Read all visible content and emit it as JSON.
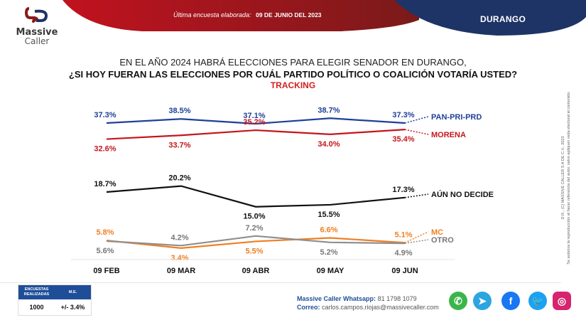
{
  "header": {
    "brand_name": "Massive",
    "brand_sub": "Caller",
    "last_survey_label": "Última encuesta elaborada:",
    "last_survey_date": "09 DE JUNIO DEL 2023",
    "region": "DURANGO",
    "colors": {
      "red": "#b3151b",
      "navy": "#1e3466"
    }
  },
  "titles": {
    "line1": "EN EL AÑO 2024 HABRÁ ELECCIONES PARA ELEGIR SENADOR EN DURANGO,",
    "line2": "¿SI HOY FUERAN LAS ELECCIONES POR CUÁL PARTIDO POLÍTICO O COALICIÓN  VOTARÍA USTED?",
    "line3": "TRACKING"
  },
  "chart_data": {
    "type": "line",
    "title": "TRACKING",
    "categories": [
      "09 FEB",
      "09 MAR",
      "09 ABR",
      "09 MAY",
      "09 JUN"
    ],
    "xlabel": "",
    "ylabel": "",
    "grid": false,
    "legend": "right (end-of-line labels)",
    "series": [
      {
        "name": "PAN-PRI-PRD",
        "color": "#1f3f99",
        "values": [
          37.3,
          38.5,
          37.1,
          38.7,
          37.3
        ],
        "labels": [
          "37.3%",
          "38.5%",
          "37.1%",
          "38.7%",
          "37.3%"
        ]
      },
      {
        "name": "MORENA",
        "color": "#c4161c",
        "values": [
          32.6,
          33.7,
          35.2,
          34.0,
          35.4
        ],
        "labels": [
          "32.6%",
          "33.7%",
          "35.2%",
          "34.0%",
          "35.4%"
        ]
      },
      {
        "name": "AÚN NO DECIDE",
        "color": "#111111",
        "values": [
          18.7,
          20.2,
          15.0,
          15.5,
          17.3
        ],
        "labels": [
          "18.7%",
          "20.2%",
          "15.0%",
          "15.5%",
          "17.3%"
        ]
      },
      {
        "name": "MC",
        "color": "#f07f22",
        "values": [
          5.8,
          3.4,
          5.5,
          6.6,
          5.1
        ],
        "labels": [
          "5.8%",
          "3.4%",
          "5.5%",
          "6.6%",
          "5.1%"
        ]
      },
      {
        "name": "OTRO",
        "color": "#8f8f8f",
        "values": [
          5.6,
          4.2,
          7.2,
          5.2,
          4.9
        ],
        "labels": [
          "5.6%",
          "4.2%",
          "7.2%",
          "5.2%",
          "4.9%"
        ]
      }
    ]
  },
  "margin_table": {
    "col1_header": "ENCUESTAS REALIZADAS",
    "col2_header": "M.E.",
    "surveys": "1000",
    "margin_error": "+/- 3.4%"
  },
  "contact": {
    "whatsapp_label": "Massive Caller Whatsapp:",
    "whatsapp_number": "81 1798 1079",
    "email_label": "Correo:",
    "email": "carlos.campos.riojas@massivecaller.com"
  },
  "social": [
    {
      "name": "whatsapp",
      "glyph": "✆",
      "color": "#3bb54a"
    },
    {
      "name": "telegram",
      "glyph": "➤",
      "color": "#2ca5e0"
    },
    {
      "name": "facebook",
      "glyph": "f",
      "color": "#1877f2"
    },
    {
      "name": "twitter",
      "glyph": "🐦",
      "color": "#1da1f2"
    },
    {
      "name": "instagram",
      "glyph": "◎",
      "color": "#d6246e"
    }
  ],
  "legal": {
    "line1": "D.R., (C) MASSIVE CALLER S.A DE C.V., 2023",
    "line2": "Se autoriza la reproducción al hacer referencia del autor, salvo apliquen veda electoral al contenido."
  }
}
